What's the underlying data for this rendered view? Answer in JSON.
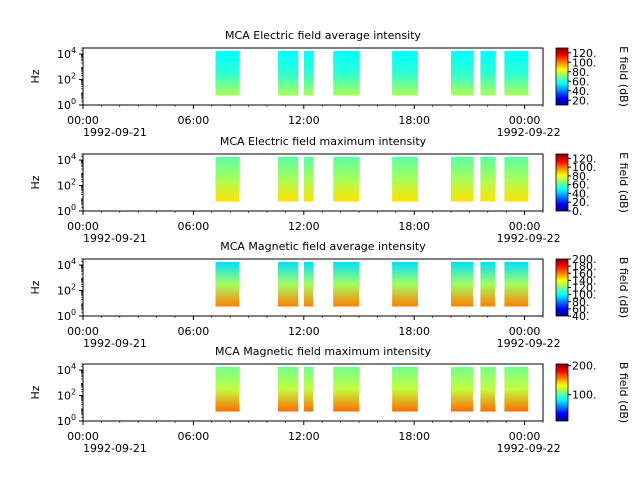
{
  "colors": {
    "jet_stops": [
      "#00008f",
      "#0000ff",
      "#0080ff",
      "#00ffff",
      "#80ff80",
      "#ffff00",
      "#ff8000",
      "#ff0000",
      "#800000"
    ],
    "axis": "#000000",
    "background": "#ffffff"
  },
  "chart_data": [
    {
      "type": "heatmap",
      "title": "MCA  Electric field average intensity",
      "ylabel": "Hz",
      "y_scale": "log",
      "ylim": [
        1,
        30000
      ],
      "y_ticks": [
        {
          "base": "10",
          "exp": "0"
        },
        {
          "base": "10",
          "exp": "2"
        },
        {
          "base": "10",
          "exp": "4"
        }
      ],
      "x_ticks": [
        "00:00",
        "06:00",
        "12:00",
        "18:00",
        "00:00"
      ],
      "x_dates": [
        "1992-09-21",
        "1992-09-22"
      ],
      "x_range": [
        "1992-09-21 00:00",
        "1992-09-22 01:00"
      ],
      "colorbar": {
        "label": "E field (dB)",
        "range": [
          10,
          130
        ],
        "ticks": [
          "20.",
          "40.",
          "60.",
          "80.",
          "100.",
          "120."
        ]
      },
      "data_intervals_hours": [
        [
          7.2,
          8.5
        ],
        [
          10.6,
          11.7
        ],
        [
          12.0,
          12.5
        ],
        [
          13.6,
          15.0
        ],
        [
          16.8,
          18.2
        ],
        [
          20.0,
          21.2
        ],
        [
          21.6,
          22.4
        ],
        [
          22.9,
          24.2
        ]
      ],
      "freq_range_hz": [
        5.6,
        17800
      ],
      "intensity_summary_db": {
        "low_freq": 75,
        "mid_freq": 60,
        "high_freq": 55
      }
    },
    {
      "type": "heatmap",
      "title": "MCA  Electric field maximum intensity",
      "ylabel": "Hz",
      "y_scale": "log",
      "ylim": [
        1,
        30000
      ],
      "y_ticks": [
        {
          "base": "10",
          "exp": "0"
        },
        {
          "base": "10",
          "exp": "2"
        },
        {
          "base": "10",
          "exp": "4"
        }
      ],
      "x_ticks": [
        "00:00",
        "06:00",
        "12:00",
        "18:00",
        "00:00"
      ],
      "x_dates": [
        "1992-09-21",
        "1992-09-22"
      ],
      "x_range": [
        "1992-09-21 00:00",
        "1992-09-22 01:00"
      ],
      "colorbar": {
        "label": "E field (dB)",
        "range": [
          0,
          130
        ],
        "ticks": [
          "0.",
          "20.",
          "40.",
          "60.",
          "80.",
          "100.",
          "120."
        ]
      },
      "data_intervals_hours": [
        [
          7.2,
          8.5
        ],
        [
          10.6,
          11.7
        ],
        [
          12.0,
          12.5
        ],
        [
          13.6,
          15.0
        ],
        [
          16.8,
          18.2
        ],
        [
          20.0,
          21.2
        ],
        [
          21.6,
          22.4
        ],
        [
          22.9,
          24.2
        ]
      ],
      "freq_range_hz": [
        5.6,
        17800
      ],
      "intensity_summary_db": {
        "low_freq": 85,
        "mid_freq": 70,
        "high_freq": 60
      }
    },
    {
      "type": "heatmap",
      "title": "MCA  Magnetic field average intensity",
      "ylabel": "Hz",
      "y_scale": "log",
      "ylim": [
        1,
        30000
      ],
      "y_ticks": [
        {
          "base": "10",
          "exp": "0"
        },
        {
          "base": "10",
          "exp": "2"
        },
        {
          "base": "10",
          "exp": "4"
        }
      ],
      "x_ticks": [
        "00:00",
        "06:00",
        "12:00",
        "18:00",
        "00:00"
      ],
      "x_dates": [
        "1992-09-21",
        "1992-09-22"
      ],
      "x_range": [
        "1992-09-21 00:00",
        "1992-09-22 01:00"
      ],
      "colorbar": {
        "label": "B field (dB)",
        "range": [
          40,
          200
        ],
        "ticks": [
          "40.",
          "60.",
          "80.",
          "100.",
          "120.",
          "140.",
          "160.",
          "180.",
          "200."
        ]
      },
      "data_intervals_hours": [
        [
          7.2,
          8.5
        ],
        [
          10.6,
          11.7
        ],
        [
          12.0,
          12.5
        ],
        [
          13.6,
          15.0
        ],
        [
          16.8,
          18.2
        ],
        [
          20.0,
          21.2
        ],
        [
          21.6,
          22.4
        ],
        [
          22.9,
          24.2
        ]
      ],
      "freq_range_hz": [
        5.6,
        17800
      ],
      "intensity_summary_db": {
        "low_freq": 160,
        "mid_freq": 125,
        "high_freq": 95
      }
    },
    {
      "type": "heatmap",
      "title": "MCA  Magnetic field maximum intensity",
      "ylabel": "Hz",
      "y_scale": "log",
      "ylim": [
        1,
        30000
      ],
      "y_ticks": [
        {
          "base": "10",
          "exp": "0"
        },
        {
          "base": "10",
          "exp": "2"
        },
        {
          "base": "10",
          "exp": "4"
        }
      ],
      "x_ticks": [
        "00:00",
        "06:00",
        "12:00",
        "18:00",
        "00:00"
      ],
      "x_dates": [
        "1992-09-21",
        "1992-09-22"
      ],
      "x_range": [
        "1992-09-21 00:00",
        "1992-09-22 01:00"
      ],
      "colorbar": {
        "label": "B field (dB)",
        "range": [
          10,
          205
        ],
        "ticks": [
          "100.",
          "200."
        ]
      },
      "data_intervals_hours": [
        [
          7.2,
          8.5
        ],
        [
          10.6,
          11.7
        ],
        [
          12.0,
          12.5
        ],
        [
          13.6,
          15.0
        ],
        [
          16.8,
          18.2
        ],
        [
          20.0,
          21.2
        ],
        [
          21.6,
          22.4
        ],
        [
          22.9,
          24.2
        ]
      ],
      "freq_range_hz": [
        5.6,
        17800
      ],
      "intensity_summary_db": {
        "low_freq": 160,
        "mid_freq": 120,
        "high_freq": 105
      }
    }
  ]
}
